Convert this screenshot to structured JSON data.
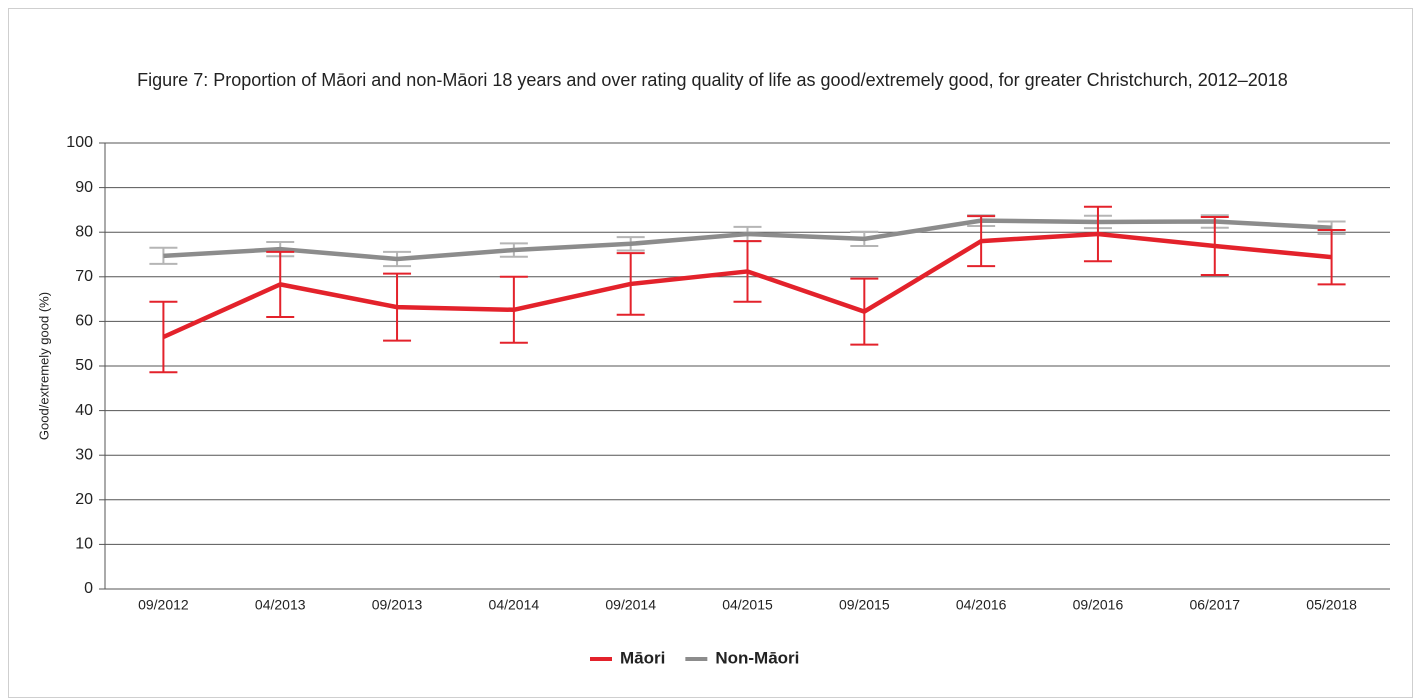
{
  "chart_data": {
    "type": "line",
    "title": "Figure 7: Proportion of Māori and non-Māori 18 years and over rating quality of life as good/extremely good, for greater Christchurch, 2012–2018",
    "ylabel": "Good/extremely good (%)",
    "categories": [
      "09/2012",
      "04/2013",
      "09/2013",
      "04/2014",
      "09/2014",
      "04/2015",
      "09/2015",
      "04/2016",
      "09/2016",
      "06/2017",
      "05/2018"
    ],
    "series": [
      {
        "name": "Māori",
        "color": "#e3222b",
        "error_color": "#e3222b",
        "values": [
          56.5,
          68.3,
          63.2,
          62.6,
          68.4,
          71.2,
          62.2,
          78.0,
          79.6,
          76.9,
          74.4
        ],
        "errors": [
          7.9,
          7.3,
          7.5,
          7.4,
          6.9,
          6.8,
          7.4,
          5.6,
          6.1,
          6.5,
          6.1
        ]
      },
      {
        "name": "Non-Māori",
        "color": "#8c8c8c",
        "error_color": "#b5b5b5",
        "values": [
          74.7,
          76.2,
          74.0,
          76.0,
          77.4,
          79.6,
          78.5,
          82.6,
          82.3,
          82.4,
          81.0
        ],
        "errors": [
          1.8,
          1.6,
          1.6,
          1.5,
          1.5,
          1.6,
          1.6,
          1.2,
          1.4,
          1.4,
          1.4
        ]
      }
    ],
    "ylim": [
      0,
      100
    ],
    "yticks": [
      0,
      10,
      20,
      30,
      40,
      50,
      60,
      70,
      80,
      90,
      100
    ],
    "grid": true,
    "legend": "bottom"
  }
}
